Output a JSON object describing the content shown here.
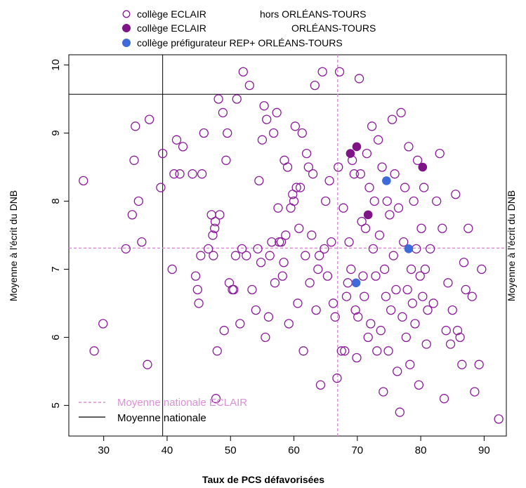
{
  "chart_data": {
    "type": "scatter",
    "title": "",
    "xlabel": "Taux de PCS défavorisées",
    "ylabel": "Moyenne à l'écrit du DNB",
    "ylabel_right": "Moyenne à l'écrit du DNB",
    "xlim": [
      24.5,
      93.5
    ],
    "ylim": [
      4.55,
      10.15
    ],
    "x_ticks": [
      30,
      40,
      50,
      60,
      70,
      80,
      90
    ],
    "y_ticks": [
      5,
      6,
      7,
      8,
      9,
      10
    ],
    "grid": false,
    "top_legend": [
      {
        "label": "collège ECLAIR",
        "label2": "hors ORLÉANS-TOURS",
        "marker": "open-circle",
        "color": "#8B1A9A"
      },
      {
        "label": "collège ECLAIR",
        "label2": "ORLÉANS-TOURS",
        "marker": "filled-circle",
        "color": "#7F1487"
      },
      {
        "label": "collège préfigurateur REP+ ORLÉANS-TOURS",
        "label2": "",
        "marker": "filled-circle",
        "color": "#3F6BD8"
      }
    ],
    "line_legend": [
      {
        "label": "Moyenne nationale ECLAIR",
        "style": "dashed",
        "color": "#DB8FD6"
      },
      {
        "label": "Moyenne nationale",
        "style": "solid",
        "color": "#000000"
      }
    ],
    "reference_lines": {
      "national_x": 39.3,
      "national_y": 9.57,
      "eclair_x": 66.9,
      "eclair_y": 7.31
    },
    "series": [
      {
        "name": "collège ECLAIR hors ORLÉANS-TOURS",
        "marker": "open-circle",
        "color": "#8B1A9A",
        "points": [
          [
            26.8,
            8.3
          ],
          [
            28.5,
            5.8
          ],
          [
            29.9,
            6.2
          ],
          [
            33.5,
            7.3
          ],
          [
            34.5,
            7.8
          ],
          [
            34.8,
            8.6
          ],
          [
            35.0,
            9.1
          ],
          [
            35.5,
            8.0
          ],
          [
            36.0,
            7.4
          ],
          [
            36.9,
            5.6
          ],
          [
            37.2,
            9.2
          ],
          [
            39.0,
            8.2
          ],
          [
            39.3,
            8.7
          ],
          [
            40.8,
            7.0
          ],
          [
            41.1,
            8.4
          ],
          [
            41.5,
            8.9
          ],
          [
            42.0,
            8.4
          ],
          [
            42.5,
            8.8
          ],
          [
            44.0,
            8.4
          ],
          [
            44.5,
            6.9
          ],
          [
            44.8,
            6.7
          ],
          [
            45.0,
            6.5
          ],
          [
            45.3,
            7.2
          ],
          [
            45.5,
            8.4
          ],
          [
            45.8,
            9.0
          ],
          [
            46.5,
            7.3
          ],
          [
            47.0,
            7.8
          ],
          [
            47.2,
            7.5
          ],
          [
            47.3,
            7.2
          ],
          [
            47.5,
            7.6
          ],
          [
            47.6,
            7.7
          ],
          [
            47.7,
            5.1
          ],
          [
            47.9,
            5.8
          ],
          [
            48.1,
            9.5
          ],
          [
            48.3,
            7.8
          ],
          [
            48.8,
            9.3
          ],
          [
            49.0,
            6.1
          ],
          [
            49.3,
            8.6
          ],
          [
            49.5,
            9.0
          ],
          [
            49.8,
            6.8
          ],
          [
            50.3,
            6.7
          ],
          [
            50.5,
            6.7
          ],
          [
            50.8,
            7.2
          ],
          [
            51.0,
            9.5
          ],
          [
            51.5,
            6.2
          ],
          [
            51.8,
            7.3
          ],
          [
            52.0,
            9.9
          ],
          [
            52.5,
            7.2
          ],
          [
            53.0,
            9.7
          ],
          [
            53.4,
            6.7
          ],
          [
            54.0,
            6.4
          ],
          [
            54.3,
            7.3
          ],
          [
            54.5,
            8.3
          ],
          [
            54.8,
            7.1
          ],
          [
            55.0,
            8.9
          ],
          [
            55.3,
            9.4
          ],
          [
            55.5,
            6.0
          ],
          [
            55.7,
            9.2
          ],
          [
            56.0,
            6.3
          ],
          [
            56.2,
            7.2
          ],
          [
            56.5,
            7.4
          ],
          [
            56.8,
            9.0
          ],
          [
            57.0,
            6.8
          ],
          [
            57.3,
            9.3
          ],
          [
            57.5,
            7.9
          ],
          [
            57.7,
            7.4
          ],
          [
            58.0,
            7.4
          ],
          [
            58.2,
            6.9
          ],
          [
            58.4,
            7.1
          ],
          [
            58.5,
            8.6
          ],
          [
            58.7,
            7.5
          ],
          [
            59.0,
            8.5
          ],
          [
            59.2,
            6.2
          ],
          [
            59.5,
            7.9
          ],
          [
            59.8,
            8.1
          ],
          [
            60.0,
            8.0
          ],
          [
            60.2,
            9.1
          ],
          [
            60.4,
            8.2
          ],
          [
            60.6,
            6.5
          ],
          [
            60.8,
            7.6
          ],
          [
            61.0,
            8.2
          ],
          [
            61.3,
            9.0
          ],
          [
            61.5,
            5.8
          ],
          [
            61.8,
            7.2
          ],
          [
            62.0,
            8.7
          ],
          [
            62.3,
            8.5
          ],
          [
            62.5,
            6.8
          ],
          [
            62.8,
            7.5
          ],
          [
            63.0,
            8.4
          ],
          [
            63.3,
            9.7
          ],
          [
            63.5,
            6.4
          ],
          [
            63.8,
            7.0
          ],
          [
            64.0,
            7.2
          ],
          [
            64.2,
            5.3
          ],
          [
            64.5,
            9.9
          ],
          [
            64.8,
            7.3
          ],
          [
            65.0,
            8.0
          ],
          [
            65.3,
            6.9
          ],
          [
            65.6,
            8.3
          ],
          [
            65.9,
            7.4
          ],
          [
            66.2,
            6.5
          ],
          [
            66.5,
            6.3
          ],
          [
            66.8,
            5.4
          ],
          [
            67.0,
            8.5
          ],
          [
            67.2,
            9.9
          ],
          [
            67.5,
            5.8
          ],
          [
            67.8,
            7.9
          ],
          [
            68.0,
            5.8
          ],
          [
            68.3,
            6.6
          ],
          [
            68.5,
            6.8
          ],
          [
            68.7,
            7.4
          ],
          [
            69.0,
            7.0
          ],
          [
            69.2,
            8.6
          ],
          [
            69.5,
            8.4
          ],
          [
            69.7,
            6.4
          ],
          [
            69.9,
            5.7
          ],
          [
            70.1,
            6.3
          ],
          [
            70.3,
            9.8
          ],
          [
            70.5,
            8.4
          ],
          [
            70.7,
            7.7
          ],
          [
            70.9,
            6.9
          ],
          [
            71.1,
            6.6
          ],
          [
            71.3,
            7.6
          ],
          [
            71.5,
            8.7
          ],
          [
            71.7,
            6.0
          ],
          [
            71.9,
            8.2
          ],
          [
            72.1,
            6.2
          ],
          [
            72.3,
            9.1
          ],
          [
            72.5,
            7.3
          ],
          [
            72.7,
            8.0
          ],
          [
            72.9,
            6.9
          ],
          [
            73.1,
            5.8
          ],
          [
            73.3,
            8.9
          ],
          [
            73.5,
            7.5
          ],
          [
            73.7,
            6.1
          ],
          [
            73.9,
            8.5
          ],
          [
            74.1,
            5.2
          ],
          [
            74.3,
            7.0
          ],
          [
            74.5,
            6.6
          ],
          [
            74.7,
            8.0
          ],
          [
            74.9,
            5.8
          ],
          [
            75.1,
            7.8
          ],
          [
            75.3,
            6.4
          ],
          [
            75.5,
            9.2
          ],
          [
            75.7,
            7.2
          ],
          [
            75.9,
            8.4
          ],
          [
            76.1,
            6.7
          ],
          [
            76.3,
            5.5
          ],
          [
            76.5,
            7.9
          ],
          [
            76.7,
            4.9
          ],
          [
            76.9,
            9.3
          ],
          [
            77.1,
            6.3
          ],
          [
            77.3,
            7.4
          ],
          [
            77.5,
            8.2
          ],
          [
            77.7,
            6.0
          ],
          [
            77.9,
            6.7
          ],
          [
            78.1,
            8.8
          ],
          [
            78.3,
            5.6
          ],
          [
            78.5,
            7.0
          ],
          [
            78.7,
            6.5
          ],
          [
            78.9,
            8.0
          ],
          [
            79.1,
            6.2
          ],
          [
            79.3,
            7.3
          ],
          [
            79.5,
            8.6
          ],
          [
            79.7,
            5.3
          ],
          [
            79.9,
            6.9
          ],
          [
            80.1,
            7.6
          ],
          [
            80.3,
            6.6
          ],
          [
            80.5,
            8.2
          ],
          [
            80.7,
            7.0
          ],
          [
            80.9,
            5.9
          ],
          [
            81.1,
            6.4
          ],
          [
            81.5,
            7.3
          ],
          [
            82.0,
            6.5
          ],
          [
            82.5,
            8.0
          ],
          [
            83.0,
            8.7
          ],
          [
            83.4,
            7.6
          ],
          [
            83.7,
            5.1
          ],
          [
            84.0,
            6.1
          ],
          [
            84.3,
            6.8
          ],
          [
            84.7,
            5.9
          ],
          [
            85.0,
            6.4
          ],
          [
            85.5,
            8.1
          ],
          [
            85.8,
            6.1
          ],
          [
            86.2,
            6.0
          ],
          [
            86.5,
            5.6
          ],
          [
            86.8,
            7.1
          ],
          [
            87.1,
            6.7
          ],
          [
            87.5,
            7.6
          ],
          [
            88.1,
            6.6
          ],
          [
            88.5,
            5.2
          ],
          [
            89.2,
            5.6
          ],
          [
            89.6,
            7.0
          ],
          [
            92.3,
            4.8
          ]
        ]
      },
      {
        "name": "collège ECLAIR ORLÉANS-TOURS",
        "marker": "filled-circle",
        "color": "#7F1487",
        "points": [
          [
            68.9,
            8.7
          ],
          [
            69.9,
            8.8
          ],
          [
            71.7,
            7.8
          ],
          [
            80.3,
            8.5
          ]
        ]
      },
      {
        "name": "collège préfigurateur REP+ ORLÉANS-TOURS",
        "marker": "filled-circle",
        "color": "#3F6BD8",
        "points": [
          [
            74.6,
            8.3
          ],
          [
            78.1,
            7.3
          ],
          [
            69.8,
            6.8
          ]
        ]
      }
    ]
  }
}
